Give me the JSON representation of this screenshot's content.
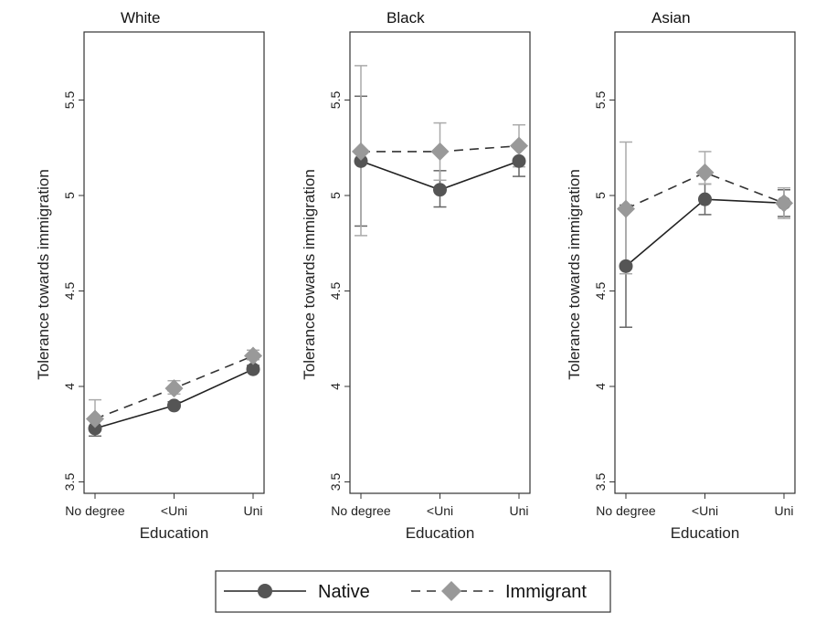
{
  "chart_data": {
    "type": "line",
    "categories": [
      "No degree",
      "<Uni",
      "Uni"
    ],
    "xlabel": "Education",
    "ylabel": "Tolerance towards immigration",
    "ylim": [
      3.45,
      5.75
    ],
    "yticks": [
      3.5,
      4,
      4.5,
      5,
      5.5
    ],
    "ytick_labels": [
      "3.5",
      "4",
      "4.5",
      "5",
      "5.5"
    ],
    "grid": false,
    "legend": {
      "placement": "bottom-center",
      "entries": [
        "Native",
        "Immigrant"
      ]
    },
    "series_style": {
      "Native": {
        "color": "#555555",
        "marker": "circle",
        "line": "solid"
      },
      "Immigrant": {
        "color": "#999999",
        "marker": "diamond",
        "line": "dashed"
      }
    },
    "panels": [
      {
        "title": "White",
        "series": [
          {
            "name": "Native",
            "values": [
              3.78,
              3.9,
              4.09
            ],
            "ci_low": [
              3.74,
              3.89,
              4.08
            ],
            "ci_high": [
              3.82,
              3.92,
              4.11
            ]
          },
          {
            "name": "Immigrant",
            "values": [
              3.83,
              3.99,
              4.16
            ],
            "ci_low": [
              3.78,
              3.96,
              4.14
            ],
            "ci_high": [
              3.93,
              4.03,
              4.19
            ]
          }
        ]
      },
      {
        "title": "Black",
        "series": [
          {
            "name": "Native",
            "values": [
              5.18,
              5.03,
              5.18
            ],
            "ci_low": [
              4.84,
              4.94,
              5.1
            ],
            "ci_high": [
              5.52,
              5.13,
              5.26
            ]
          },
          {
            "name": "Immigrant",
            "values": [
              5.23,
              5.23,
              5.26
            ],
            "ci_low": [
              4.79,
              5.08,
              5.15
            ],
            "ci_high": [
              5.68,
              5.38,
              5.37
            ]
          }
        ]
      },
      {
        "title": "Asian",
        "series": [
          {
            "name": "Native",
            "values": [
              4.63,
              4.98,
              4.96
            ],
            "ci_low": [
              4.31,
              4.9,
              4.89
            ],
            "ci_high": [
              4.95,
              5.06,
              5.03
            ]
          },
          {
            "name": "Immigrant",
            "values": [
              4.93,
              5.12,
              4.96
            ],
            "ci_low": [
              4.59,
              5.06,
              4.88
            ],
            "ci_high": [
              5.28,
              5.23,
              5.04
            ]
          }
        ]
      }
    ]
  }
}
